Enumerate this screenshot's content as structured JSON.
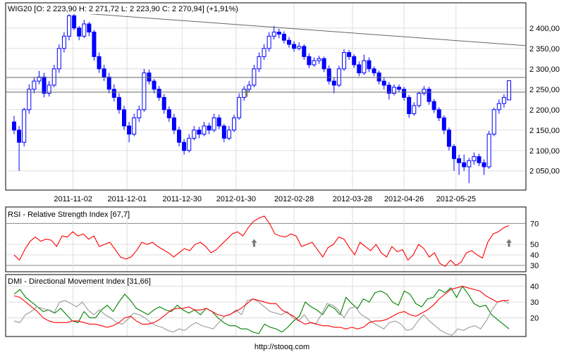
{
  "chart_data": [
    {
      "type": "candlestick",
      "title": "WIG20 [O: 2 223,90  H: 2 271,72  L: 2 223,90  C: 2 270,94] (+1,91%)",
      "ylim": [
        2003,
        2460
      ],
      "yticks": [
        2400,
        2350,
        2300,
        2250,
        2200,
        2150,
        2100,
        2050
      ],
      "ytick_labels": [
        "2 400,00",
        "2 350,00",
        "2 300,00",
        "2 250,00",
        "2 200,00",
        "2 150,00",
        "2 100,00",
        "2 050,00"
      ],
      "xticks": [
        {
          "pos": 11.8,
          "label": "2011-11-02"
        },
        {
          "pos": 22.6,
          "label": "2011-12-01"
        },
        {
          "pos": 33.6,
          "label": "2011-12-30"
        },
        {
          "pos": 44.4,
          "label": "2012-01-30"
        },
        {
          "pos": 56.0,
          "label": "2012-02-28"
        },
        {
          "pos": 67.7,
          "label": "2012-03-28"
        },
        {
          "pos": 78.0,
          "label": "2012-04-26"
        },
        {
          "pos": 88.4,
          "label": "2012-05-25"
        }
      ],
      "grid": true,
      "candle_color": "#0000ff",
      "ohlc": [
        [
          2170,
          2185,
          2140,
          2150
        ],
        [
          2150,
          2160,
          2050,
          2120
        ],
        [
          2120,
          2205,
          2110,
          2200
        ],
        [
          2200,
          2262,
          2190,
          2250
        ],
        [
          2250,
          2280,
          2240,
          2270
        ],
        [
          2270,
          2295,
          2262,
          2280
        ],
        [
          2280,
          2290,
          2230,
          2240
        ],
        [
          2240,
          2270,
          2232,
          2260
        ],
        [
          2260,
          2310,
          2255,
          2300
        ],
        [
          2300,
          2360,
          2290,
          2350
        ],
        [
          2350,
          2390,
          2340,
          2380
        ],
        [
          2380,
          2440,
          2370,
          2430
        ],
        [
          2430,
          2435,
          2395,
          2400
        ],
        [
          2400,
          2405,
          2370,
          2380
        ],
        [
          2380,
          2420,
          2375,
          2410
        ],
        [
          2410,
          2415,
          2380,
          2390
        ],
        [
          2390,
          2395,
          2320,
          2330
        ],
        [
          2330,
          2340,
          2290,
          2300
        ],
        [
          2300,
          2310,
          2270,
          2280
        ],
        [
          2280,
          2290,
          2240,
          2250
        ],
        [
          2250,
          2262,
          2220,
          2230
        ],
        [
          2230,
          2240,
          2190,
          2200
        ],
        [
          2200,
          2210,
          2150,
          2160
        ],
        [
          2160,
          2170,
          2120,
          2140
        ],
        [
          2140,
          2190,
          2135,
          2180
        ],
        [
          2180,
          2210,
          2170,
          2200
        ],
        [
          2200,
          2300,
          2195,
          2290
        ],
        [
          2290,
          2298,
          2262,
          2270
        ],
        [
          2270,
          2275,
          2240,
          2250
        ],
        [
          2250,
          2258,
          2222,
          2230
        ],
        [
          2230,
          2238,
          2190,
          2200
        ],
        [
          2200,
          2208,
          2170,
          2180
        ],
        [
          2180,
          2190,
          2140,
          2150
        ],
        [
          2150,
          2158,
          2110,
          2120
        ],
        [
          2120,
          2128,
          2090,
          2100
        ],
        [
          2100,
          2140,
          2095,
          2130
        ],
        [
          2130,
          2160,
          2125,
          2150
        ],
        [
          2150,
          2158,
          2130,
          2140
        ],
        [
          2140,
          2170,
          2135,
          2160
        ],
        [
          2160,
          2168,
          2140,
          2150
        ],
        [
          2150,
          2190,
          2145,
          2180
        ],
        [
          2180,
          2188,
          2152,
          2160
        ],
        [
          2160,
          2165,
          2120,
          2130
        ],
        [
          2130,
          2160,
          2125,
          2150
        ],
        [
          2150,
          2188,
          2145,
          2180
        ],
        [
          2180,
          2240,
          2175,
          2230
        ],
        [
          2230,
          2258,
          2222,
          2250
        ],
        [
          2250,
          2270,
          2242,
          2260
        ],
        [
          2260,
          2310,
          2255,
          2300
        ],
        [
          2300,
          2340,
          2292,
          2330
        ],
        [
          2330,
          2360,
          2322,
          2350
        ],
        [
          2350,
          2390,
          2342,
          2380
        ],
        [
          2380,
          2405,
          2372,
          2390
        ],
        [
          2390,
          2398,
          2375,
          2385
        ],
        [
          2385,
          2392,
          2362,
          2370
        ],
        [
          2370,
          2378,
          2352,
          2360
        ],
        [
          2360,
          2368,
          2342,
          2350
        ],
        [
          2350,
          2365,
          2345,
          2355
        ],
        [
          2355,
          2360,
          2322,
          2330
        ],
        [
          2330,
          2338,
          2302,
          2310
        ],
        [
          2310,
          2328,
          2305,
          2320
        ],
        [
          2320,
          2332,
          2312,
          2325
        ],
        [
          2325,
          2330,
          2292,
          2300
        ],
        [
          2300,
          2308,
          2262,
          2270
        ],
        [
          2270,
          2278,
          2240,
          2260
        ],
        [
          2260,
          2308,
          2255,
          2300
        ],
        [
          2300,
          2348,
          2295,
          2340
        ],
        [
          2340,
          2346,
          2322,
          2330
        ],
        [
          2330,
          2336,
          2302,
          2310
        ],
        [
          2310,
          2318,
          2282,
          2290
        ],
        [
          2290,
          2335,
          2285,
          2320
        ],
        [
          2320,
          2328,
          2292,
          2300
        ],
        [
          2300,
          2306,
          2282,
          2290
        ],
        [
          2290,
          2296,
          2262,
          2270
        ],
        [
          2270,
          2278,
          2250,
          2260
        ],
        [
          2260,
          2268,
          2225,
          2240
        ],
        [
          2240,
          2262,
          2235,
          2255
        ],
        [
          2255,
          2262,
          2242,
          2250
        ],
        [
          2250,
          2256,
          2222,
          2230
        ],
        [
          2230,
          2236,
          2180,
          2190
        ],
        [
          2190,
          2218,
          2185,
          2210
        ],
        [
          2210,
          2245,
          2205,
          2240
        ],
        [
          2240,
          2258,
          2235,
          2250
        ],
        [
          2250,
          2256,
          2212,
          2220
        ],
        [
          2220,
          2226,
          2192,
          2200
        ],
        [
          2200,
          2206,
          2172,
          2180
        ],
        [
          2180,
          2186,
          2140,
          2150
        ],
        [
          2150,
          2156,
          2100,
          2110
        ],
        [
          2110,
          2116,
          2050,
          2080
        ],
        [
          2080,
          2090,
          2040,
          2070
        ],
        [
          2070,
          2090,
          2050,
          2060
        ],
        [
          2060,
          2082,
          2020,
          2075
        ],
        [
          2075,
          2095,
          2065,
          2085
        ],
        [
          2085,
          2092,
          2062,
          2070
        ],
        [
          2070,
          2078,
          2040,
          2060
        ],
        [
          2060,
          2148,
          2055,
          2140
        ],
        [
          2140,
          2205,
          2135,
          2200
        ],
        [
          2200,
          2225,
          2190,
          2215
        ],
        [
          2215,
          2238,
          2205,
          2230
        ],
        [
          2223.9,
          2271.72,
          2223.9,
          2270.94
        ]
      ],
      "annotations": {
        "trendline": {
          "from": [
            11.4,
            2438
          ],
          "to": [
            102.5,
            2357
          ]
        },
        "horizontal_lines": [
          2279,
          2243
        ],
        "up_arrow": {
          "pos": 46.5,
          "value": 2240
        }
      }
    },
    {
      "type": "line",
      "title": "RSI - Relative Strength Index [67,7]",
      "ylim": [
        24.6,
        85
      ],
      "yticks": [
        70,
        50,
        40,
        30
      ],
      "reference_lines": [
        70,
        30
      ],
      "series": [
        {
          "color": "#ff0000",
          "values": [
            40,
            35,
            45,
            53,
            57,
            53,
            55,
            54,
            48,
            58,
            57,
            62,
            58,
            60,
            55,
            58,
            48,
            50,
            52,
            45,
            38,
            36,
            38,
            44,
            52,
            50,
            52,
            48,
            45,
            42,
            38,
            42,
            46,
            44,
            50,
            52,
            48,
            42,
            45,
            50,
            55,
            60,
            62,
            58,
            66,
            72,
            75,
            77,
            70,
            60,
            58,
            57,
            60,
            58,
            48,
            50,
            52,
            45,
            38,
            47,
            50,
            57,
            55,
            47,
            40,
            52,
            48,
            44,
            50,
            42,
            38,
            48,
            43,
            45,
            35,
            40,
            50,
            46,
            38,
            42,
            32,
            29,
            35,
            30,
            33,
            42,
            44,
            40,
            37,
            52,
            60,
            62,
            66,
            68
          ]
        }
      ],
      "up_arrows": [
        {
          "pos": 0.485,
          "value": 51
        },
        {
          "pos": 1.0,
          "value": 51
        }
      ]
    },
    {
      "type": "line",
      "title": "DMI - Directional Movement Index [31,66]",
      "ylim": [
        8.6,
        47
      ],
      "yticks": [
        40,
        30,
        20
      ],
      "series": [
        {
          "color": "#008000",
          "values": [
            35,
            38,
            33,
            30,
            27,
            24,
            25,
            23,
            26,
            22,
            18,
            17,
            24,
            20,
            20,
            25,
            28,
            24,
            30,
            35,
            31,
            26,
            24,
            22,
            25,
            27,
            25,
            24,
            28,
            25,
            23,
            25,
            22,
            26,
            24,
            20,
            17,
            15,
            15,
            13,
            13,
            11,
            10,
            16,
            14,
            13,
            11,
            14,
            18,
            21,
            30,
            27,
            25,
            22,
            28,
            26,
            22,
            33,
            29,
            26,
            32,
            30,
            36,
            37,
            35,
            30,
            28,
            37,
            35,
            29,
            27,
            32,
            33,
            38,
            36,
            39,
            33,
            40,
            35,
            29,
            27,
            28,
            22,
            19,
            16,
            13
          ]
        },
        {
          "color": "#999999",
          "values": [
            18,
            17,
            22,
            24,
            27,
            26,
            25,
            23,
            30,
            31,
            29,
            27,
            30,
            25,
            22,
            25,
            22,
            20,
            17,
            16,
            19,
            23,
            22,
            20,
            17,
            15,
            14,
            12,
            11,
            13,
            12,
            15,
            17,
            15,
            14,
            13,
            17,
            21,
            22,
            25,
            22,
            31,
            32,
            30,
            27,
            24,
            23,
            22,
            24,
            20,
            18,
            22,
            17,
            16,
            22,
            29,
            28,
            25,
            20,
            26,
            27,
            22,
            20,
            17,
            15,
            13,
            17,
            18,
            16,
            12,
            13,
            18,
            22,
            18,
            15,
            12,
            10,
            9,
            13,
            12,
            14,
            15,
            13,
            18,
            25,
            30,
            31,
            29
          ]
        },
        {
          "color": "#ff0000",
          "values": [
            34,
            33,
            30,
            27,
            24,
            20,
            18,
            17,
            17,
            17,
            18,
            18,
            17,
            16,
            16,
            15,
            14,
            15,
            17,
            20,
            21,
            18,
            16,
            16,
            17,
            19,
            22,
            25,
            26,
            26,
            27,
            25,
            25,
            26,
            24,
            22,
            21,
            22,
            24,
            26,
            29,
            32,
            31,
            30,
            29,
            29,
            25,
            23,
            21,
            18,
            16,
            17,
            16,
            15,
            15,
            14,
            14,
            13,
            14,
            13,
            14,
            17,
            18,
            18,
            19,
            21,
            23,
            24,
            22,
            21,
            23,
            25,
            28,
            32,
            35,
            38,
            39,
            40,
            39,
            38,
            37,
            34,
            32,
            30,
            31,
            31
          ]
        }
      ]
    }
  ],
  "footer": {
    "source": "http://stooq.com"
  }
}
